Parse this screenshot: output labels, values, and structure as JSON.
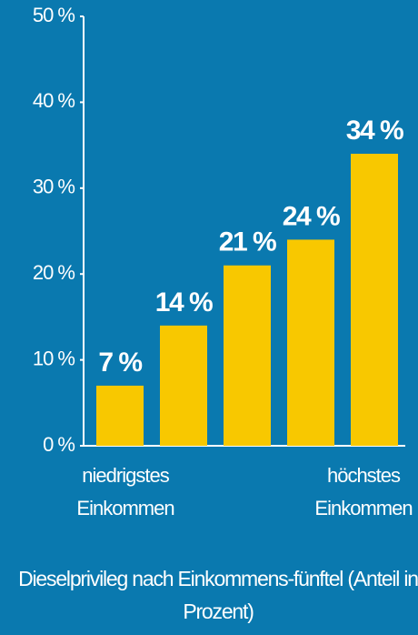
{
  "chart_data": {
    "type": "bar",
    "title": "Dieselprivileg nach Einkommens-fünftel (Anteil in Prozent)",
    "categories": [
      "niedrigstes Einkommen",
      null,
      null,
      null,
      "höchstes Einkommen"
    ],
    "values": [
      7,
      14,
      21,
      24,
      34
    ],
    "value_labels": [
      "7 %",
      "14 %",
      "21 %",
      "24 %",
      "34 %"
    ],
    "color": "#f8c800",
    "ylim": [
      0,
      50
    ],
    "yticks": [
      {
        "value": 0,
        "label": "0 %"
      },
      {
        "value": 10,
        "label": "10 %"
      },
      {
        "value": 20,
        "label": "20 %"
      },
      {
        "value": 30,
        "label": "30 %"
      },
      {
        "value": 40,
        "label": "40 %"
      },
      {
        "value": 50,
        "label": "50 %"
      }
    ],
    "grid": false
  }
}
